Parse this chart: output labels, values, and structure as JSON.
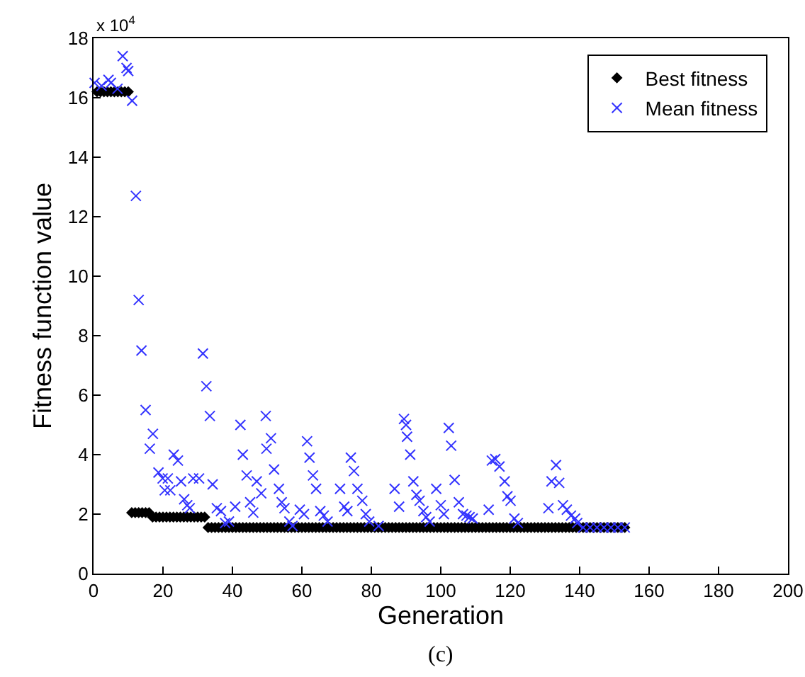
{
  "chart_data": {
    "type": "scatter",
    "xlabel": "Generation",
    "ylabel": "Fitness function value",
    "annotations": [
      "x 10$^{4}$",
      "(c)"
    ],
    "xlim": [
      0,
      200
    ],
    "xticks": [
      0,
      20,
      40,
      60,
      80,
      100,
      120,
      140,
      160,
      180,
      200
    ],
    "ylim": [
      0,
      18
    ],
    "yticks": [
      0,
      2,
      4,
      6,
      8,
      10,
      12,
      14,
      16,
      18
    ],
    "grid": false,
    "legend": "top right",
    "series": [
      {
        "name": "Best fitness",
        "color": "#000000",
        "marker": "diamond",
        "x": [
          1,
          2,
          3,
          4,
          5,
          6,
          7,
          8,
          9,
          10,
          11,
          12,
          13,
          14,
          15,
          16,
          17,
          18,
          19,
          20,
          21,
          22,
          23,
          24,
          25,
          26,
          27,
          28,
          29,
          30,
          31,
          32,
          33,
          34,
          35,
          36,
          37,
          38,
          39,
          40,
          41,
          42,
          43,
          44,
          45,
          46,
          47,
          48,
          49,
          50,
          51,
          52,
          53,
          54,
          55,
          56,
          57,
          58,
          59,
          60,
          61,
          62,
          63,
          64,
          65,
          66,
          67,
          68,
          69,
          70,
          71,
          72,
          73,
          74,
          75,
          76,
          77,
          78,
          79,
          80,
          81,
          82,
          83,
          84,
          85,
          86,
          87,
          88,
          89,
          90,
          91,
          92,
          93,
          94,
          95,
          96,
          97,
          98,
          99,
          100,
          101,
          102,
          103,
          104,
          105,
          106,
          107,
          108,
          109,
          110,
          111,
          112,
          113,
          114,
          115,
          116,
          117,
          118,
          119,
          120,
          121,
          122,
          123,
          124,
          125,
          126,
          127,
          128,
          129,
          130,
          131,
          132,
          133,
          134,
          135,
          136,
          137,
          138,
          139,
          140,
          141,
          142,
          143,
          144,
          145,
          146,
          147,
          148,
          149,
          150,
          151,
          152,
          153
        ],
        "values": [
          16.2,
          16.2,
          16.2,
          16.2,
          16.2,
          16.2,
          16.2,
          16.2,
          16.2,
          16.2,
          2.05,
          2.05,
          2.05,
          2.05,
          2.05,
          2.05,
          1.9,
          1.9,
          1.9,
          1.9,
          1.9,
          1.9,
          1.9,
          1.9,
          1.9,
          1.9,
          1.9,
          1.9,
          1.9,
          1.9,
          1.9,
          1.9,
          1.55,
          1.55,
          1.55,
          1.55,
          1.55,
          1.55,
          1.55,
          1.55,
          1.55,
          1.55,
          1.55,
          1.55,
          1.55,
          1.55,
          1.55,
          1.55,
          1.55,
          1.55,
          1.55,
          1.55,
          1.55,
          1.55,
          1.55,
          1.55,
          1.55,
          1.55,
          1.55,
          1.55,
          1.55,
          1.55,
          1.55,
          1.55,
          1.55,
          1.55,
          1.55,
          1.55,
          1.55,
          1.55,
          1.55,
          1.55,
          1.55,
          1.55,
          1.55,
          1.55,
          1.55,
          1.55,
          1.55,
          1.55,
          1.55,
          1.55,
          1.55,
          1.55,
          1.55,
          1.55,
          1.55,
          1.55,
          1.55,
          1.55,
          1.55,
          1.55,
          1.55,
          1.55,
          1.55,
          1.55,
          1.55,
          1.55,
          1.55,
          1.55,
          1.55,
          1.55,
          1.55,
          1.55,
          1.55,
          1.55,
          1.55,
          1.55,
          1.55,
          1.55,
          1.55,
          1.55,
          1.55,
          1.55,
          1.55,
          1.55,
          1.55,
          1.55,
          1.55,
          1.55,
          1.55,
          1.55,
          1.55,
          1.55,
          1.55,
          1.55,
          1.55,
          1.55,
          1.55,
          1.55,
          1.55,
          1.55,
          1.55,
          1.55,
          1.55,
          1.55,
          1.55,
          1.55,
          1.55,
          1.55,
          1.55,
          1.55,
          1.55,
          1.55,
          1.55,
          1.55,
          1.55,
          1.55,
          1.55,
          1.55,
          1.55,
          1.55,
          1.55
        ]
      },
      {
        "name": "Mean fitness",
        "color": "#3333ff",
        "marker": "cross",
        "x": [
          0.3,
          2.3,
          4.3,
          5,
          6.9,
          8.4,
          9.5,
          10,
          11.1,
          12.2,
          13,
          13.8,
          15,
          16.2,
          17.1,
          18.7,
          19.9,
          20.5,
          21.4,
          22.1,
          23.1,
          24.3,
          25.2,
          26.1,
          27,
          27.7,
          28.7,
          30.4,
          31.5,
          32.5,
          33.5,
          34.3,
          35.5,
          36.7,
          37.9,
          39,
          40.8,
          42.3,
          43,
          44.1,
          45.1,
          46,
          47,
          48.3,
          49.6,
          49.8,
          51.1,
          52,
          53.4,
          54.2,
          55,
          56.4,
          57.3,
          59.4,
          60.6,
          61.5,
          62.2,
          63.2,
          64.1,
          65.3,
          66.3,
          67.4,
          71,
          72.2,
          73.1,
          74.1,
          75,
          76,
          77.4,
          78.4,
          79.4,
          82.1,
          86.7,
          88,
          89.4,
          90,
          90.3,
          91.2,
          92.1,
          93,
          93.9,
          95,
          95.8,
          96.8,
          98.7,
          100,
          100.9,
          102.3,
          103,
          104,
          105.2,
          106.4,
          107.4,
          108.3,
          109.2,
          113.8,
          114.7,
          115.7,
          116.9,
          118.4,
          119.2,
          120.1,
          121.2,
          122.2,
          131,
          131.9,
          133.2,
          134.1,
          135.2,
          136.3,
          137.5,
          138.7,
          139.3,
          141,
          143,
          145,
          147,
          149,
          151,
          153
        ],
        "values": [
          16.5,
          16.4,
          16.6,
          16.5,
          16.3,
          17.4,
          17,
          16.9,
          15.9,
          12.7,
          9.2,
          7.5,
          5.5,
          4.2,
          4.7,
          3.4,
          3.2,
          2.8,
          3.2,
          2.8,
          4,
          3.8,
          3.1,
          2.5,
          2.3,
          2.2,
          3.2,
          3.2,
          7.4,
          6.3,
          5.3,
          3,
          2.2,
          2.1,
          1.7,
          1.75,
          2.25,
          5,
          4,
          3.3,
          2.4,
          2.05,
          3.1,
          2.7,
          5.3,
          4.2,
          4.55,
          3.5,
          2.85,
          2.4,
          2.2,
          1.75,
          1.6,
          2.15,
          2,
          4.45,
          3.9,
          3.3,
          2.85,
          2.1,
          1.95,
          1.75,
          2.85,
          2.25,
          2.1,
          3.9,
          3.45,
          2.85,
          2.45,
          2,
          1.75,
          1.6,
          2.85,
          2.25,
          5.2,
          5,
          4.6,
          4,
          3.1,
          2.65,
          2.45,
          2.1,
          1.9,
          1.75,
          2.85,
          2.3,
          2,
          4.9,
          4.3,
          3.15,
          2.4,
          2,
          1.95,
          1.9,
          1.85,
          2.15,
          3.8,
          3.85,
          3.6,
          3.1,
          2.6,
          2.45,
          1.85,
          1.7,
          2.2,
          3.1,
          3.65,
          3.05,
          2.3,
          2.15,
          1.95,
          1.85,
          1.7,
          1.55,
          1.55,
          1.55,
          1.55,
          1.55,
          1.55,
          1.55
        ]
      }
    ]
  }
}
